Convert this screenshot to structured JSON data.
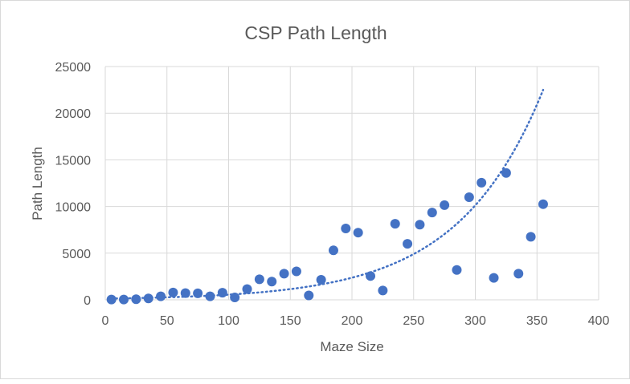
{
  "chart_data": {
    "type": "scatter",
    "title": "CSP Path Length",
    "xlabel": "Maze Size",
    "ylabel": "Path Length",
    "xlim": [
      0,
      400
    ],
    "ylim": [
      0,
      25000
    ],
    "x_ticks": [
      0,
      50,
      100,
      150,
      200,
      250,
      300,
      350,
      400
    ],
    "y_ticks": [
      0,
      5000,
      10000,
      15000,
      20000,
      25000
    ],
    "grid": true,
    "legend": "none",
    "colors": {
      "points": "#4472c4",
      "trendline": "#4472c4",
      "grid": "#d9d9d9",
      "text": "#595959"
    },
    "series": [
      {
        "x": [
          5,
          15,
          25,
          35,
          45,
          55,
          65,
          75,
          85,
          95,
          105,
          115,
          125,
          135,
          145,
          155,
          165,
          175,
          185,
          195,
          205,
          215,
          225,
          235,
          245,
          255,
          265,
          275,
          285,
          295,
          305,
          315,
          325,
          335,
          345,
          355
        ],
        "y": [
          30,
          30,
          60,
          150,
          380,
          780,
          720,
          700,
          380,
          760,
          260,
          1150,
          2200,
          1950,
          2800,
          3050,
          470,
          2150,
          5300,
          7650,
          7200,
          2550,
          1000,
          8150,
          6000,
          8050,
          9350,
          10150,
          3200,
          11000,
          12550,
          2350,
          13600,
          2800,
          6750,
          10250
        ]
      }
    ],
    "trendline": {
      "type": "exponential",
      "x_range": [
        5,
        355
      ],
      "y_start": 140,
      "y_end": 22500
    }
  }
}
